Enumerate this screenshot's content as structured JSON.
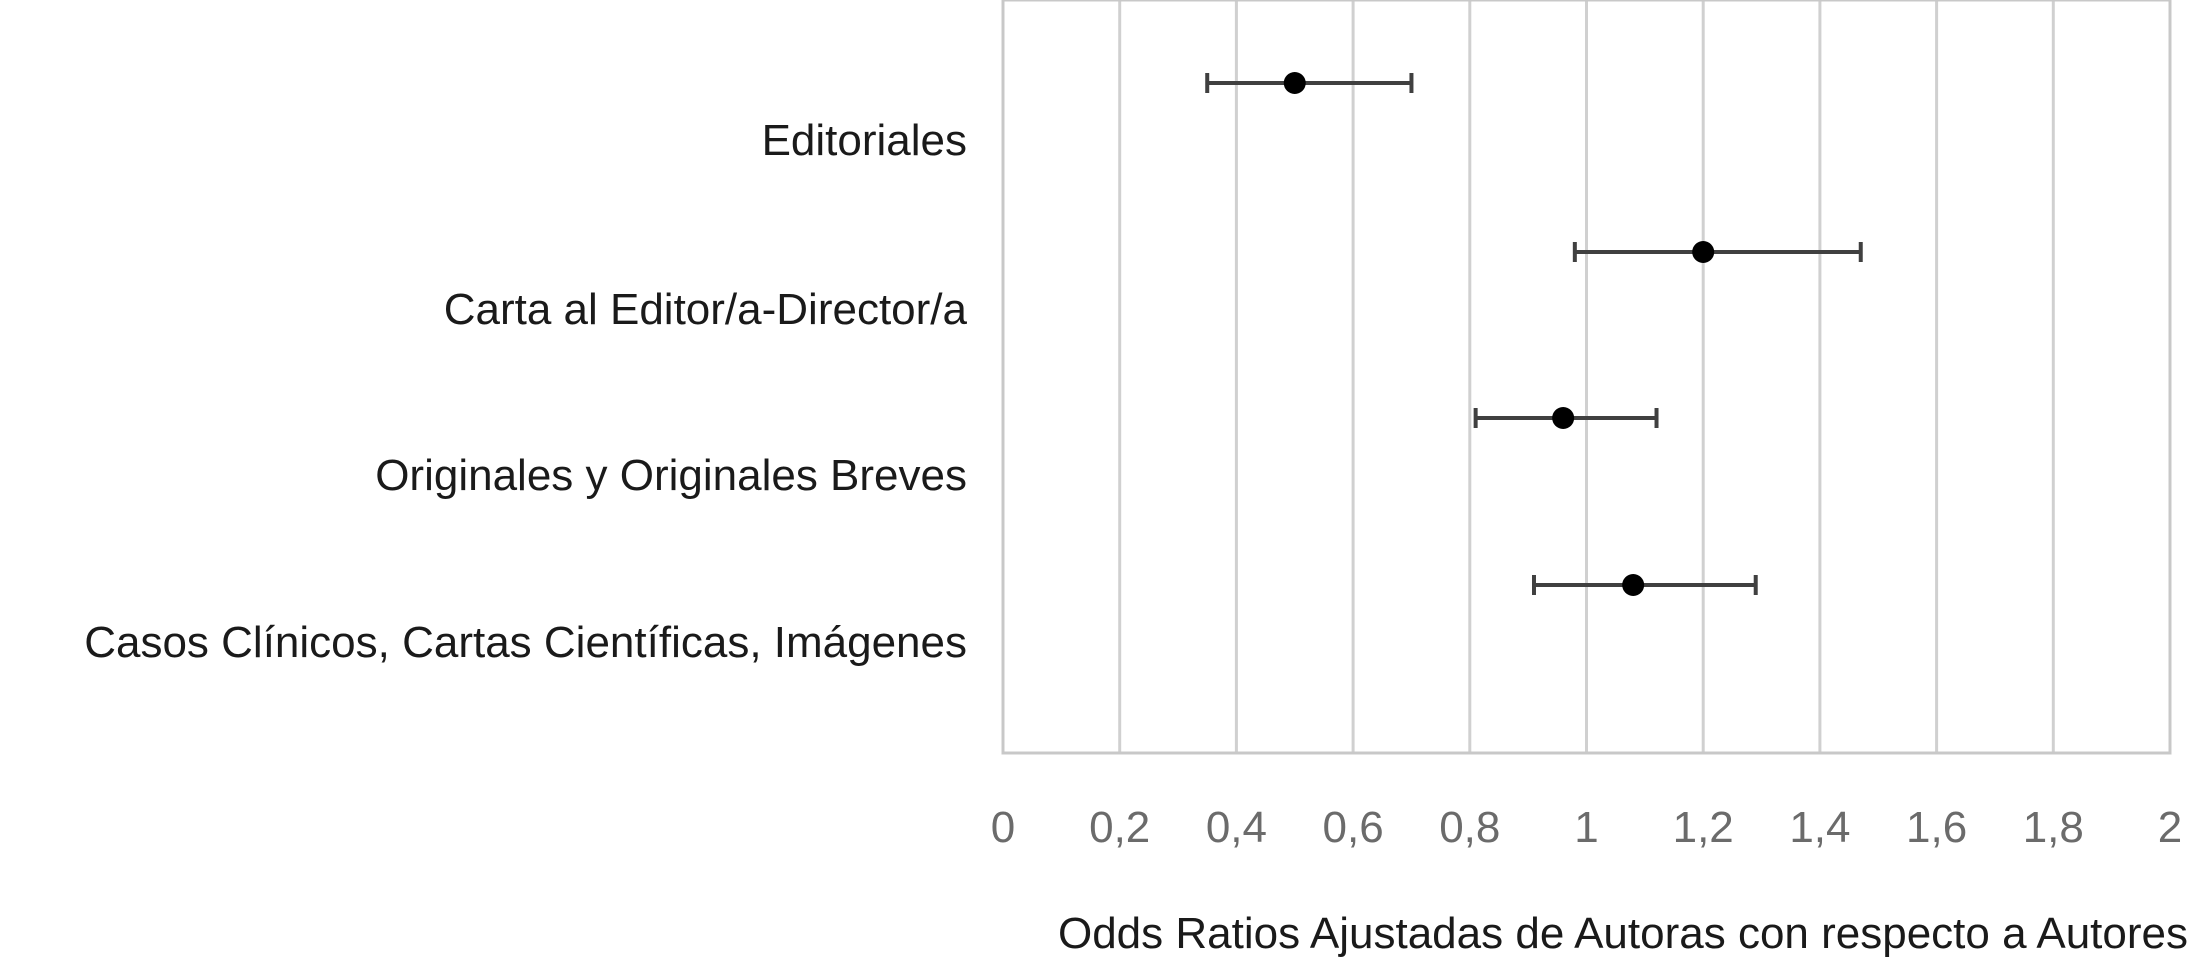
{
  "chart_data": {
    "type": "scatter",
    "subtype": "forest-plot",
    "categories": [
      "Editoriales",
      "Carta al Editor/a-Director/a",
      "Originales y Originales Breves",
      "Casos Clínicos, Cartas Científicas, Imágenes"
    ],
    "series": [
      {
        "points": [
          {
            "category": "Editoriales",
            "estimate": 0.5,
            "lower": 0.35,
            "upper": 0.7
          },
          {
            "category": "Carta al Editor/a-Director/a",
            "estimate": 1.2,
            "lower": 0.98,
            "upper": 1.47
          },
          {
            "category": "Originales y Originales Breves",
            "estimate": 0.96,
            "lower": 0.81,
            "upper": 1.12
          },
          {
            "category": "Casos Clínicos, Cartas Científicas, Imágenes",
            "estimate": 1.08,
            "lower": 0.91,
            "upper": 1.29
          }
        ]
      }
    ],
    "xlim": [
      0,
      2
    ],
    "xticks": [
      0,
      0.2,
      0.4,
      0.6,
      0.8,
      1,
      1.2,
      1.4,
      1.6,
      1.8,
      2
    ],
    "xtick_labels": [
      "0",
      "0,2",
      "0,4",
      "0,6",
      "0,8",
      "1",
      "1,2",
      "1,4",
      "1,6",
      "1,8",
      "2"
    ],
    "xlabel": "Odds Ratios Ajustadas de Autoras con respecto a Autores",
    "ylabel": "",
    "title": "",
    "grid": "vertical",
    "legend": "none"
  },
  "colors": {
    "grid": "#d0d0d0",
    "frame": "#c8c8c8",
    "whisker": "#404040",
    "marker": "#000000",
    "tick_text": "#6b6b6b",
    "label_text": "#1a1a1a"
  }
}
